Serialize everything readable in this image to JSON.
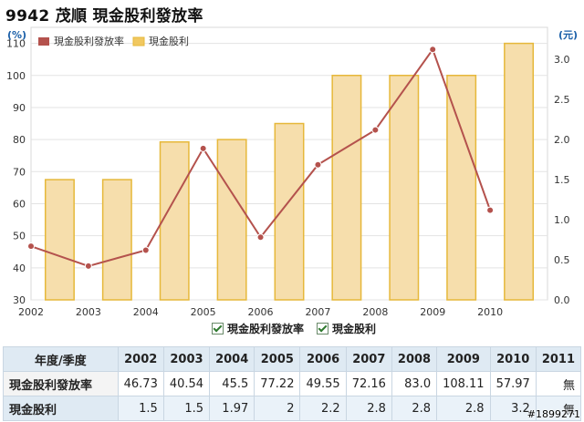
{
  "title": "9942 茂順 現金股利發放率",
  "chart_data": {
    "type": "bar",
    "left_axis_unit": "(%)",
    "right_axis_unit": "(元)",
    "categories": [
      "2002",
      "2003",
      "2004",
      "2005",
      "2006",
      "2007",
      "2008",
      "2009",
      "2010"
    ],
    "left_ylim": [
      30,
      115
    ],
    "left_ticks": [
      30,
      40,
      50,
      60,
      70,
      80,
      90,
      100,
      110
    ],
    "right_ylim": [
      0,
      3.4
    ],
    "right_ticks": [
      0.0,
      0.5,
      1.0,
      1.5,
      2.0,
      2.5,
      3.0
    ],
    "series": [
      {
        "name": "現金股利發放率",
        "type": "line",
        "axis": "left",
        "color": "#b4524d",
        "values": [
          46.73,
          40.54,
          45.5,
          77.22,
          49.55,
          72.16,
          83.0,
          108.11,
          57.97
        ]
      },
      {
        "name": "現金股利",
        "type": "bar",
        "axis": "right",
        "color": "#f6deac",
        "border": "#e6b83a",
        "values": [
          1.5,
          1.5,
          1.97,
          2,
          2.2,
          2.8,
          2.8,
          2.8,
          3.2
        ]
      }
    ],
    "grid": true,
    "legend_position": "top-left"
  },
  "table": {
    "header_label": "年度/季度",
    "years": [
      "2002",
      "2003",
      "2004",
      "2005",
      "2006",
      "2007",
      "2008",
      "2009",
      "2010",
      "2011"
    ],
    "rows": [
      {
        "label": "現金股利發放率",
        "values": [
          "46.73",
          "40.54",
          "45.5",
          "77.22",
          "49.55",
          "72.16",
          "83.0",
          "108.11",
          "57.97",
          "無"
        ]
      },
      {
        "label": "現金股利",
        "values": [
          "1.5",
          "1.5",
          "1.97",
          "2",
          "2.2",
          "2.8",
          "2.8",
          "2.8",
          "3.2",
          "無"
        ]
      }
    ]
  },
  "legend_bottom": [
    "現金股利發放率",
    "現金股利"
  ],
  "watermark": "#1899271"
}
